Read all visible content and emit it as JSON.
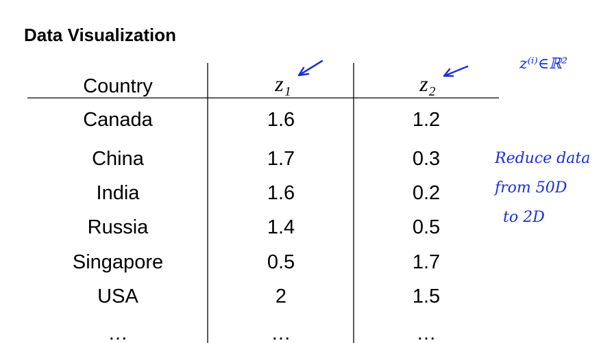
{
  "slide": {
    "title": "Data Visualization",
    "table": {
      "header": [
        "Country",
        "z₁",
        "z₂"
      ],
      "rows": [
        [
          "Canada",
          1.6,
          1.2
        ],
        [
          "China",
          1.7,
          0.3
        ],
        [
          "India",
          1.6,
          0.2
        ],
        [
          "Russia",
          1.4,
          0.5
        ],
        [
          "Singapore",
          0.5,
          1.7
        ],
        [
          "USA",
          2,
          1.5
        ],
        [
          "…",
          "…",
          "…"
        ]
      ]
    },
    "notes": {
      "formula": "z⁽ⁱ⁾∈ℝ²",
      "reduce": [
        "Reduce data",
        "from 50D",
        "to 2D"
      ]
    }
  }
}
